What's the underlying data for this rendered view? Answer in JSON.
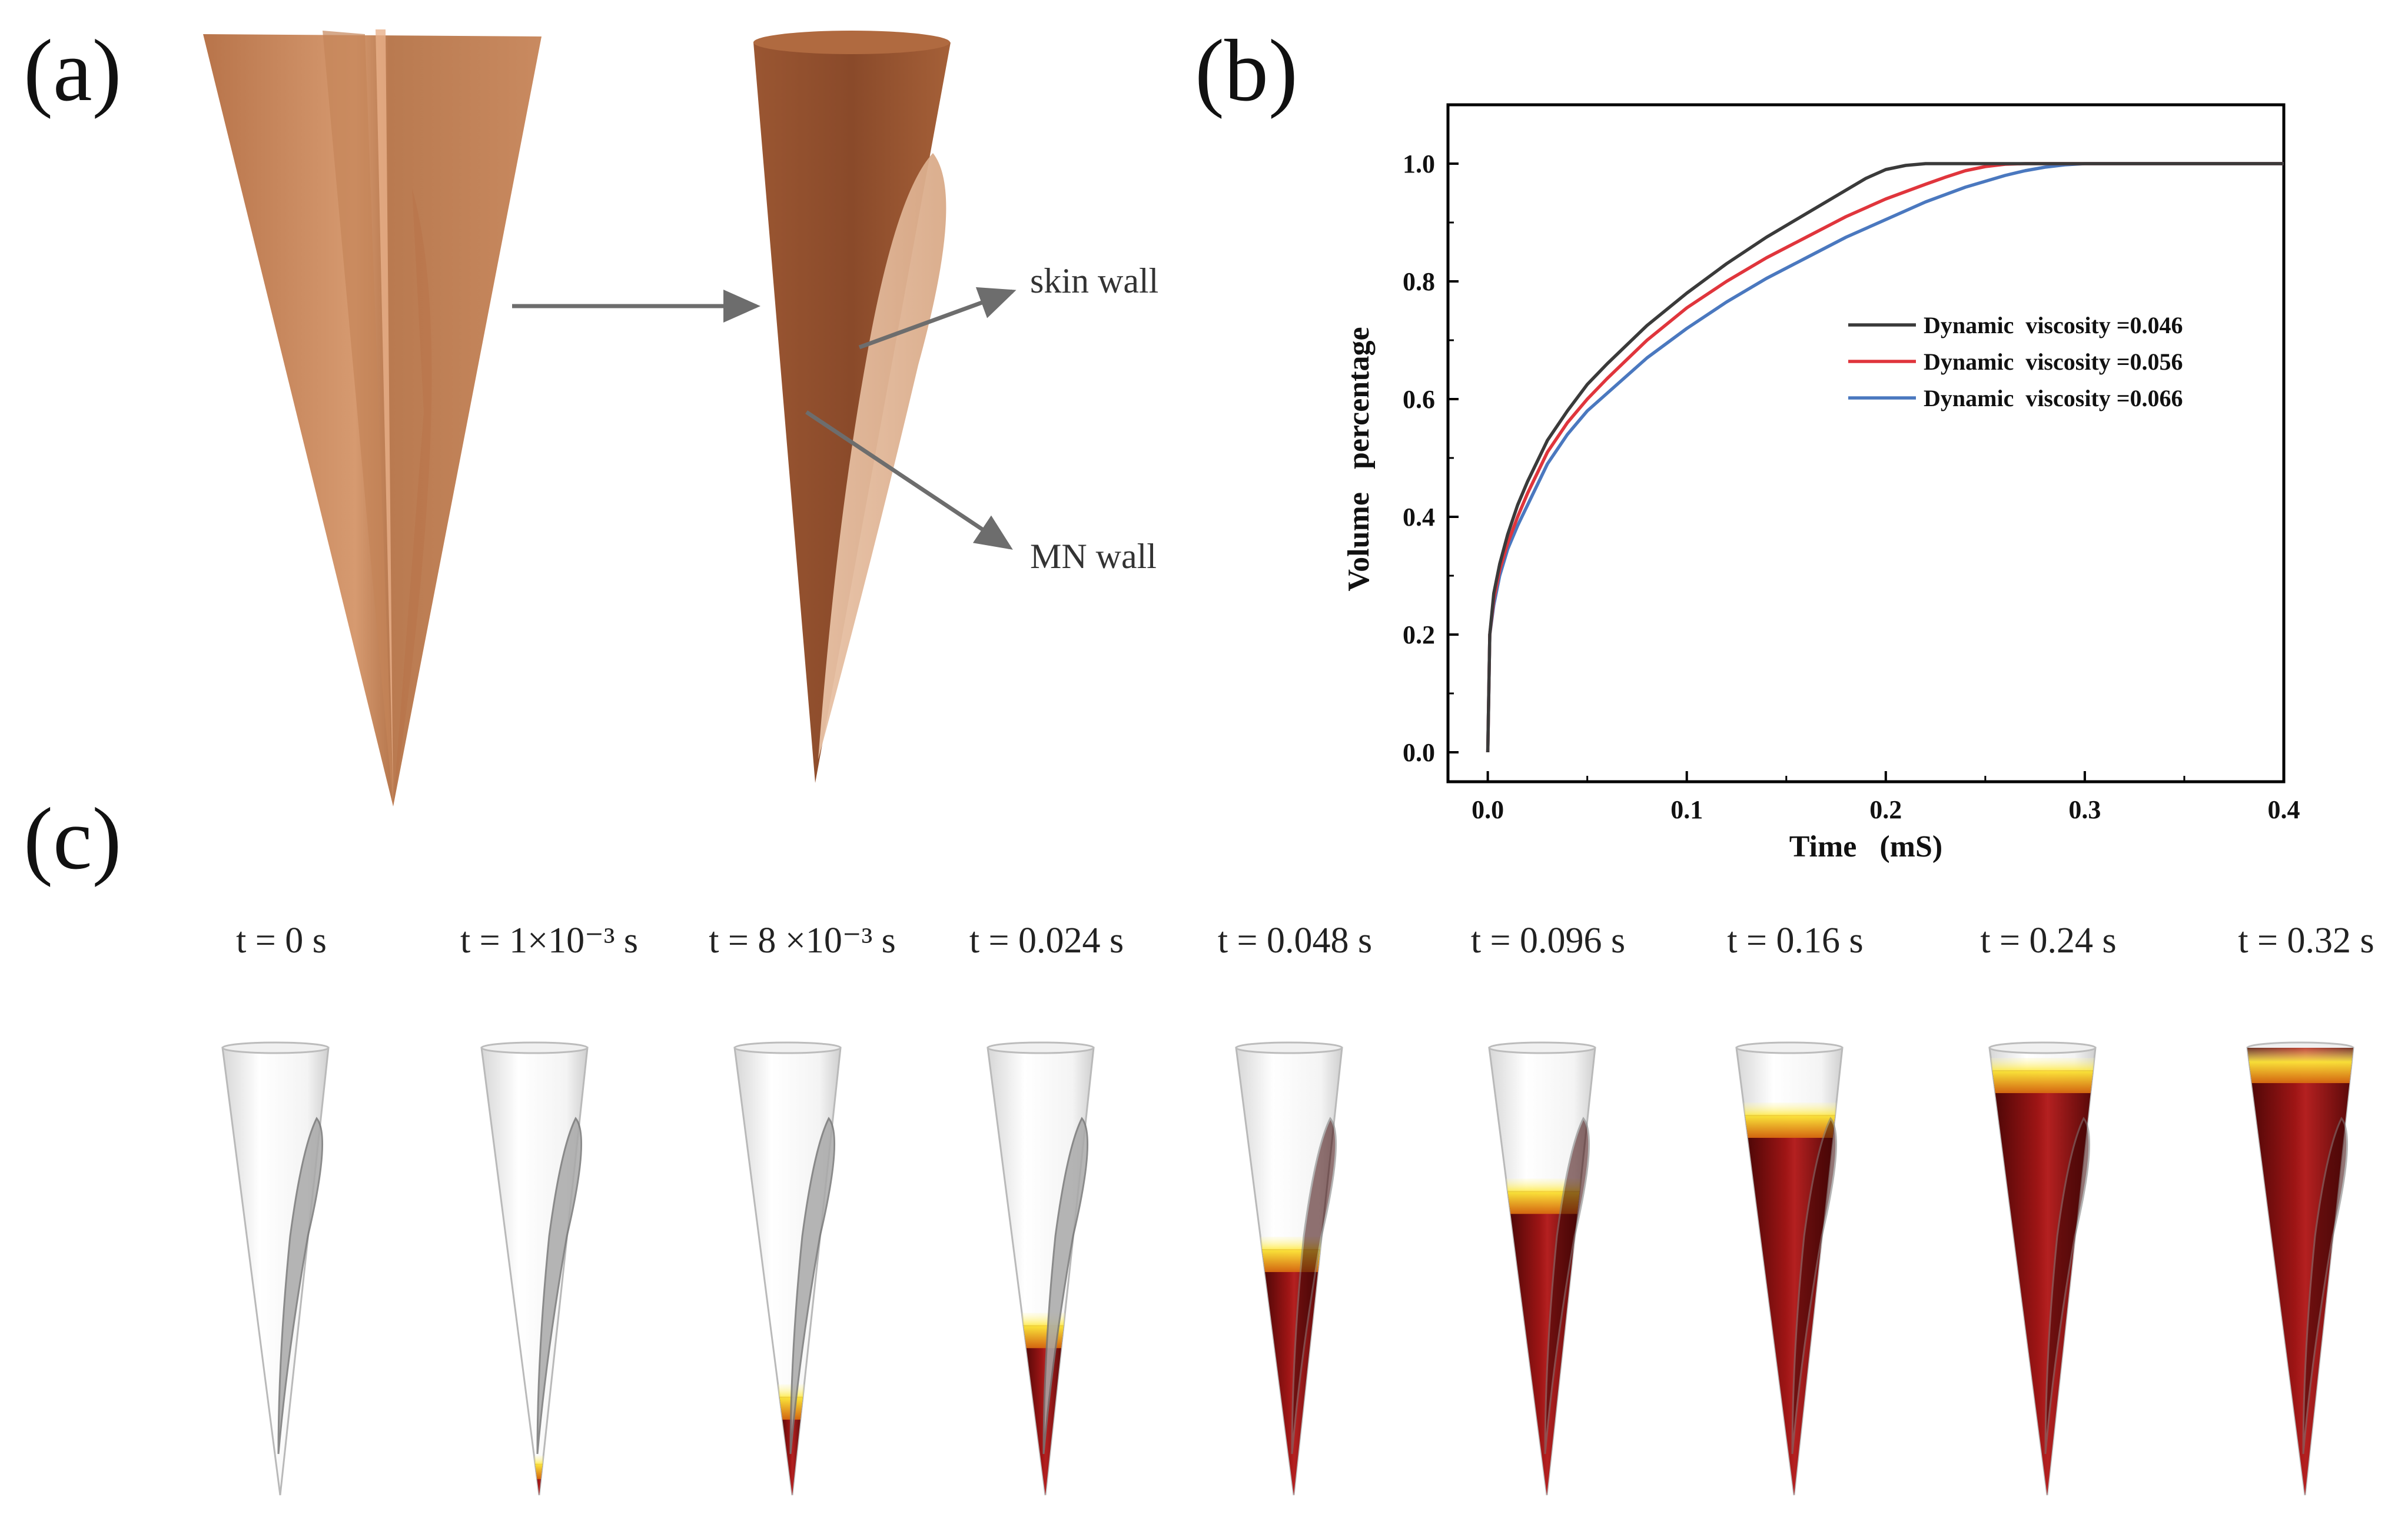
{
  "panels": {
    "a": {
      "label": "(a)",
      "skin_wall": "skin wall",
      "mn_wall": "MN wall"
    },
    "b": {
      "label": "(b)"
    },
    "c": {
      "label": "(c)"
    }
  },
  "chart_data": {
    "type": "line",
    "title": "",
    "xlabel": "Time   (mS)",
    "ylabel": "Volume   percentage",
    "xlim": [
      -0.02,
      0.4
    ],
    "ylim": [
      -0.05,
      1.1
    ],
    "xticks": [
      "0.0",
      "0.1",
      "0.2",
      "0.3",
      "0.4"
    ],
    "yticks": [
      "0.0",
      "0.2",
      "0.4",
      "0.6",
      "0.8",
      "1.0"
    ],
    "legend_position": "middle-right",
    "series": [
      {
        "name": "Dynamic  viscosity =0.046",
        "color": "#3a3a3a",
        "x": [
          0,
          0.001,
          0.003,
          0.006,
          0.01,
          0.015,
          0.02,
          0.03,
          0.04,
          0.05,
          0.06,
          0.08,
          0.1,
          0.12,
          0.14,
          0.16,
          0.18,
          0.19,
          0.2,
          0.21,
          0.22,
          0.23,
          0.25,
          0.3,
          0.4
        ],
        "y": [
          0,
          0.2,
          0.27,
          0.32,
          0.37,
          0.42,
          0.46,
          0.53,
          0.58,
          0.625,
          0.66,
          0.725,
          0.78,
          0.83,
          0.875,
          0.915,
          0.955,
          0.975,
          0.99,
          0.997,
          1.0,
          1.0,
          1.0,
          1.0,
          1.0
        ]
      },
      {
        "name": "Dynamic  viscosity =0.056",
        "color": "#e0353c",
        "x": [
          0,
          0.001,
          0.003,
          0.006,
          0.01,
          0.015,
          0.02,
          0.03,
          0.04,
          0.05,
          0.06,
          0.08,
          0.1,
          0.12,
          0.14,
          0.16,
          0.18,
          0.2,
          0.22,
          0.23,
          0.24,
          0.25,
          0.26,
          0.27,
          0.3,
          0.4
        ],
        "y": [
          0,
          0.2,
          0.26,
          0.31,
          0.355,
          0.4,
          0.44,
          0.51,
          0.56,
          0.6,
          0.635,
          0.7,
          0.755,
          0.8,
          0.84,
          0.875,
          0.91,
          0.94,
          0.965,
          0.977,
          0.988,
          0.995,
          0.999,
          1.0,
          1.0,
          1.0
        ]
      },
      {
        "name": "Dynamic  viscosity =0.066",
        "color": "#4a78bf",
        "x": [
          0,
          0.001,
          0.003,
          0.006,
          0.01,
          0.015,
          0.02,
          0.03,
          0.04,
          0.05,
          0.06,
          0.08,
          0.1,
          0.12,
          0.14,
          0.16,
          0.18,
          0.2,
          0.22,
          0.24,
          0.26,
          0.27,
          0.28,
          0.29,
          0.3,
          0.32,
          0.4
        ],
        "y": [
          0,
          0.2,
          0.25,
          0.3,
          0.345,
          0.385,
          0.42,
          0.49,
          0.54,
          0.58,
          0.61,
          0.67,
          0.72,
          0.765,
          0.805,
          0.84,
          0.875,
          0.905,
          0.935,
          0.96,
          0.98,
          0.988,
          0.994,
          0.998,
          1.0,
          1.0,
          1.0
        ]
      }
    ]
  },
  "frames": [
    {
      "time": "t = 0 s",
      "level": 0.0
    },
    {
      "time": "t = 1×10⁻³ s",
      "level": 0.07
    },
    {
      "time": "t = 8 ×10⁻³ s",
      "level": 0.22
    },
    {
      "time": "t = 0.024 s",
      "level": 0.38
    },
    {
      "time": "t = 0.048 s",
      "level": 0.55
    },
    {
      "time": "t = 0.096 s",
      "level": 0.68
    },
    {
      "time": "t = 0.16 s",
      "level": 0.85
    },
    {
      "time": "t = 0.24 s",
      "level": 0.95
    },
    {
      "time": "t = 0.32 s",
      "level": 1.0
    }
  ],
  "colors": {
    "copper_light": "#c98a60",
    "copper_dark": "#8c4a2a",
    "blood_dark": "#5a0a0a",
    "blood_mid": "#9b1414",
    "front_yellow": "#ffe93a",
    "arrow": "#6d6d6d"
  }
}
